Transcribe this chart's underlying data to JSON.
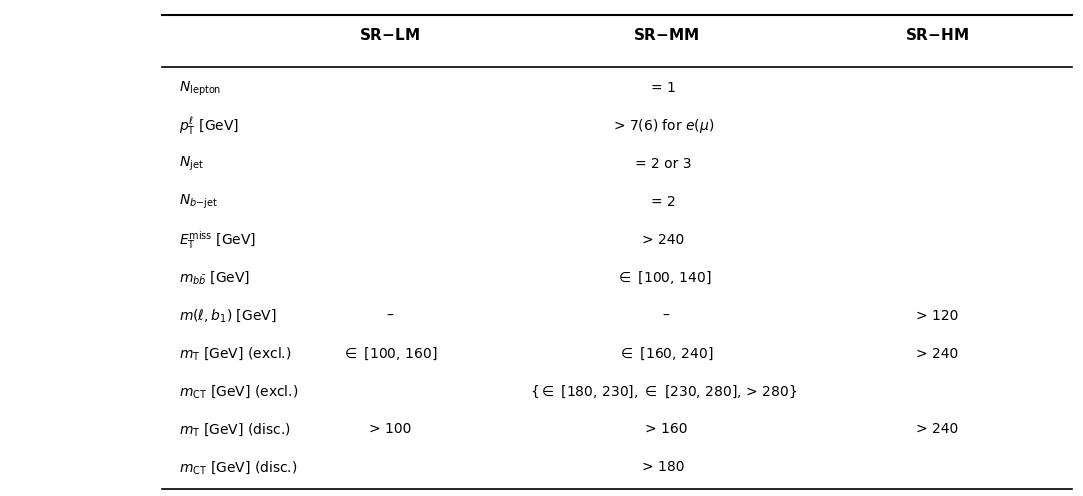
{
  "col_headers": [
    "SR-LM",
    "SR-MM",
    "SR-HM"
  ],
  "row_labels": [
    "$N_{\\mathrm{lepton}}$",
    "$p_{\\mathrm{T}}^{\\ell}$ [GeV]",
    "$N_{\\mathrm{jet}}$",
    "$N_{b\\mathrm{-jet}}$",
    "$E_{\\mathrm{T}}^{\\mathrm{miss}}$ [GeV]",
    "$m_{b\\bar{b}}$ [GeV]",
    "$m(\\ell, b_1)$ [GeV]",
    "$m_{\\mathrm{T}}$ [GeV] (excl.)",
    "$m_{\\mathrm{CT}}$ [GeV] (excl.)",
    "$m_{\\mathrm{T}}$ [GeV] (disc.)",
    "$m_{\\mathrm{CT}}$ [GeV] (disc.)"
  ],
  "cell_data": [
    [
      "",
      "= 1",
      ""
    ],
    [
      "",
      "> 7(6) for $e(\\mu)$",
      ""
    ],
    [
      "",
      "= 2 or 3",
      ""
    ],
    [
      "",
      "= 2",
      ""
    ],
    [
      "",
      "> 240",
      ""
    ],
    [
      "",
      "$\\in$ [100, 140]",
      ""
    ],
    [
      "–",
      "–",
      "> 120"
    ],
    [
      "$\\in$ [100, 160]",
      "$\\in$ [160, 240]",
      "> 240"
    ],
    [
      "",
      "{$\\in$ [180, 230], $\\in$ [230, 280], > 280}",
      ""
    ],
    [
      "> 100",
      "> 160",
      "> 240"
    ],
    [
      "",
      "> 180",
      ""
    ]
  ],
  "bg_color": "#ffffff",
  "text_color": "#000000",
  "header_fontsize": 11,
  "row_label_fontsize": 10,
  "cell_fontsize": 10,
  "fig_width": 10.83,
  "fig_height": 4.96
}
